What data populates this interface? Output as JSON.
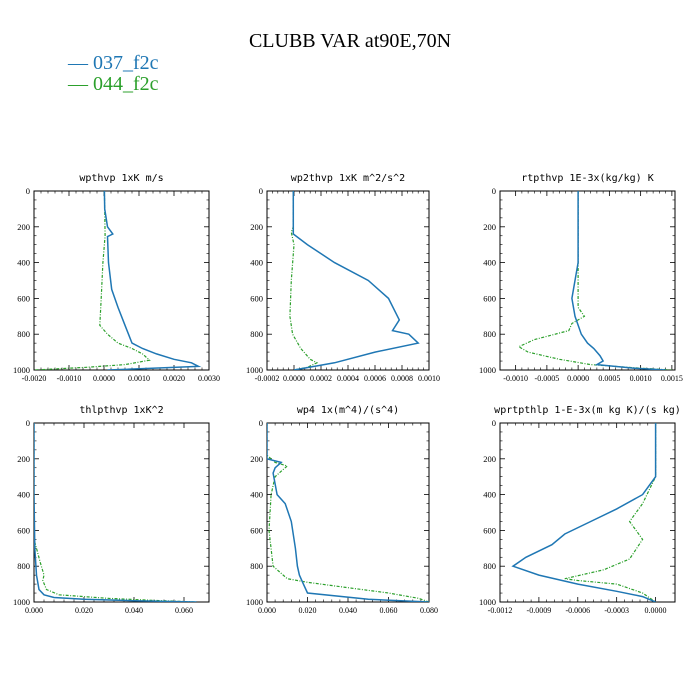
{
  "figure": {
    "title": "CLUBB VAR at90E,70N",
    "legend": [
      {
        "label": "037_f2c",
        "color": "#1f77b4"
      },
      {
        "label": "044_f2c",
        "color": "#2ca02c"
      }
    ]
  },
  "chart_data": [
    {
      "type": "line",
      "title": "wpthvp   1xK m/s",
      "xlim": [
        -0.002,
        0.003
      ],
      "ylim": [
        0,
        1000
      ],
      "y_inverted": true,
      "xticks": [
        "-0.0020",
        "-0.0010",
        "0.0000",
        "0.0010",
        "0.0020",
        "0.0030"
      ],
      "yticks": [
        "0",
        "200",
        "400",
        "600",
        "800",
        "1000"
      ],
      "series": [
        {
          "name": "037_f2c",
          "color": "#1f77b4",
          "style": "solid",
          "x": [
            1e-05,
            2e-05,
            0.0001,
            0.00025,
            0.0001,
            0.00013,
            0.00022,
            0.0004,
            0.0006,
            0.0007,
            0.0008,
            0.0011,
            0.0015,
            0.002,
            0.0025,
            0.0027,
            0.0001
          ],
          "y": [
            0,
            100,
            200,
            240,
            255,
            400,
            550,
            650,
            750,
            800,
            850,
            880,
            910,
            940,
            960,
            980,
            1000
          ]
        },
        {
          "name": "044_f2c",
          "color": "#2ca02c",
          "style": "dashed",
          "x": [
            1e-05,
            2e-05,
            3e-05,
            -3e-05,
            -8e-05,
            -0.00012,
            0.0001,
            0.0004,
            0.0008,
            0.0011,
            0.0013,
            0.0006,
            -0.0005,
            -0.0015,
            -0.002
          ],
          "y": [
            0,
            100,
            250,
            400,
            600,
            750,
            800,
            850,
            880,
            910,
            945,
            970,
            985,
            995,
            1000
          ]
        }
      ]
    },
    {
      "type": "line",
      "title": "wp2thvp   1xK m^2/s^2",
      "xlim": [
        -0.0002,
        0.001
      ],
      "ylim": [
        0,
        1000
      ],
      "y_inverted": true,
      "xticks": [
        "-0.0002",
        "0.0000",
        "0.0002",
        "0.0004",
        "0.0006",
        "0.0008",
        "0.0010"
      ],
      "yticks": [
        "0",
        "200",
        "400",
        "600",
        "800",
        "1000"
      ],
      "series": [
        {
          "name": "037_f2c",
          "color": "#1f77b4",
          "style": "solid",
          "x": [
            -5e-06,
            -5e-06,
            -5e-06,
            0.0001,
            0.0003,
            0.00055,
            0.0007,
            0.00078,
            0.00073,
            0.00085,
            0.00092,
            0.0006,
            0.0003,
            0.0
          ],
          "y": [
            0,
            100,
            240,
            300,
            400,
            500,
            600,
            720,
            780,
            800,
            850,
            900,
            960,
            1000
          ]
        },
        {
          "name": "044_f2c",
          "color": "#2ca02c",
          "style": "dashed",
          "x": [
            -5e-06,
            -5e-06,
            -2e-05,
            0.0,
            -2e-05,
            -3e-05,
            -1e-05,
            5e-05,
            0.00012,
            0.00017,
            0.0001,
            0.0
          ],
          "y": [
            0,
            200,
            230,
            300,
            500,
            700,
            800,
            880,
            940,
            960,
            985,
            1000
          ]
        }
      ]
    },
    {
      "type": "line",
      "title": "rtpthvp   1E-3x(kg/kg) K",
      "xlim": [
        -0.00125,
        0.00155
      ],
      "ylim": [
        0,
        1000
      ],
      "y_inverted": true,
      "xticks": [
        "-0.0010",
        "-0.0005",
        "0.0000",
        "0.0005",
        "0.0010",
        "0.0015"
      ],
      "yticks": [
        "0",
        "200",
        "400",
        "600",
        "800",
        "1000"
      ],
      "series": [
        {
          "name": "037_f2c",
          "color": "#1f77b4",
          "style": "solid",
          "x": [
            0.0,
            0.0,
            0.0,
            -5e-05,
            -0.0001,
            -5e-05,
            5e-05,
            0.00015,
            0.00025,
            0.0003,
            0.00035,
            0.0004,
            0.0003,
            0.0009,
            0.0014
          ],
          "y": [
            0,
            200,
            400,
            500,
            600,
            700,
            800,
            850,
            880,
            900,
            920,
            950,
            970,
            990,
            1000
          ]
        },
        {
          "name": "044_f2c",
          "color": "#2ca02c",
          "style": "dashed",
          "x": [
            0.0,
            0.0,
            0.0,
            0.0001,
            -0.0001,
            -0.00015,
            -0.0007,
            -0.00095,
            -0.0008,
            -0.0003,
            0.0002,
            0.001,
            0.0015
          ],
          "y": [
            0,
            400,
            650,
            700,
            740,
            780,
            830,
            870,
            900,
            940,
            970,
            990,
            1000
          ]
        }
      ]
    },
    {
      "type": "line",
      "title": "thlpthvp   1xK^2",
      "xlim": [
        0.0,
        0.07
      ],
      "ylim": [
        0,
        1000
      ],
      "y_inverted": true,
      "xticks": [
        "0.000",
        "0.020",
        "0.040",
        "0.060"
      ],
      "yticks": [
        "0",
        "200",
        "400",
        "600",
        "800",
        "1000"
      ],
      "series": [
        {
          "name": "037_f2c",
          "color": "#1f77b4",
          "style": "solid",
          "x": [
            0.0,
            0.0,
            0.0003,
            0.001,
            0.002,
            0.004,
            0.008,
            0.02,
            0.04,
            0.065
          ],
          "y": [
            0,
            400,
            700,
            850,
            930,
            960,
            975,
            985,
            993,
            1000
          ]
        },
        {
          "name": "044_f2c",
          "color": "#2ca02c",
          "style": "dashed",
          "x": [
            0.0,
            0.0,
            0.001,
            0.0025,
            0.004,
            0.0035,
            0.005,
            0.01,
            0.03,
            0.05,
            0.065
          ],
          "y": [
            0,
            650,
            700,
            780,
            850,
            880,
            930,
            960,
            980,
            992,
            1000
          ]
        }
      ]
    },
    {
      "type": "line",
      "title": "wp4   1x(m^4)/(s^4)",
      "xlim": [
        0.0,
        0.08
      ],
      "ylim": [
        0,
        1000
      ],
      "y_inverted": true,
      "xticks": [
        "0.000",
        "0.020",
        "0.040",
        "0.060",
        "0.080"
      ],
      "yticks": [
        "0",
        "200",
        "400",
        "600",
        "800",
        "1000"
      ],
      "series": [
        {
          "name": "037_f2c",
          "color": "#1f77b4",
          "style": "solid",
          "x": [
            0.0,
            0.0,
            0.007,
            0.004,
            0.003,
            0.005,
            0.009,
            0.012,
            0.014,
            0.015,
            0.016,
            0.018,
            0.02,
            0.05,
            0.08
          ],
          "y": [
            0,
            200,
            220,
            250,
            280,
            400,
            450,
            550,
            700,
            800,
            850,
            900,
            950,
            985,
            1000
          ]
        },
        {
          "name": "044_f2c",
          "color": "#2ca02c",
          "style": "dashed",
          "x": [
            0.0,
            0.0,
            0.004,
            0.01,
            0.008,
            0.004,
            0.002,
            0.001,
            0.003,
            0.01,
            0.02,
            0.04,
            0.06,
            0.075,
            0.08
          ],
          "y": [
            0,
            180,
            220,
            240,
            260,
            300,
            400,
            600,
            800,
            870,
            890,
            920,
            950,
            980,
            1000
          ]
        }
      ]
    },
    {
      "type": "line",
      "title": "wprtpthlp   1-E-3x(m kg K)/(s kg)",
      "xlim": [
        -0.0012,
        0.00015
      ],
      "ylim": [
        0,
        1000
      ],
      "y_inverted": true,
      "xticks": [
        "-0.0012",
        "-0.0009",
        "-0.0006",
        "-0.0003",
        "0.0000"
      ],
      "yticks": [
        "0",
        "200",
        "400",
        "600",
        "800",
        "1000"
      ],
      "series": [
        {
          "name": "037_f2c",
          "color": "#1f77b4",
          "style": "solid",
          "x": [
            0.0,
            0.0,
            -0.0001,
            -0.0003,
            -0.0005,
            -0.0007,
            -0.0008,
            -0.001,
            -0.0011,
            -0.0009,
            -0.0006,
            -0.0003,
            -0.0001,
            0.0
          ],
          "y": [
            0,
            300,
            400,
            480,
            550,
            620,
            680,
            750,
            800,
            850,
            900,
            940,
            970,
            1000
          ]
        },
        {
          "name": "044_f2c",
          "color": "#2ca02c",
          "style": "dashed",
          "x": [
            0.0,
            0.0,
            -0.0001,
            -0.0002,
            -0.0001,
            -0.0002,
            -0.0004,
            -0.0007,
            -0.0006,
            -0.0003,
            -0.0001,
            0.0
          ],
          "y": [
            0,
            300,
            450,
            550,
            650,
            760,
            820,
            870,
            880,
            900,
            950,
            1000
          ]
        }
      ]
    }
  ]
}
